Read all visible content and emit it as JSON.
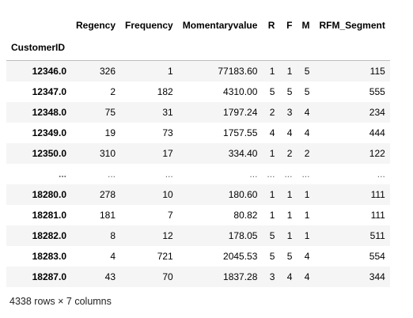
{
  "table": {
    "index_name": "CustomerID",
    "columns": [
      "Regency",
      "Frequency",
      "Momentaryvalue",
      "R",
      "F",
      "M",
      "RFM_Segment"
    ],
    "rows": [
      {
        "index": "12346.0",
        "cells": [
          "326",
          "1",
          "77183.60",
          "1",
          "1",
          "5",
          "115"
        ]
      },
      {
        "index": "12347.0",
        "cells": [
          "2",
          "182",
          "4310.00",
          "5",
          "5",
          "5",
          "555"
        ]
      },
      {
        "index": "12348.0",
        "cells": [
          "75",
          "31",
          "1797.24",
          "2",
          "3",
          "4",
          "234"
        ]
      },
      {
        "index": "12349.0",
        "cells": [
          "19",
          "73",
          "1757.55",
          "4",
          "4",
          "4",
          "444"
        ]
      },
      {
        "index": "12350.0",
        "cells": [
          "310",
          "17",
          "334.40",
          "1",
          "2",
          "2",
          "122"
        ]
      },
      {
        "index": "...",
        "cells": [
          "...",
          "...",
          "...",
          "...",
          "...",
          "...",
          "..."
        ]
      },
      {
        "index": "18280.0",
        "cells": [
          "278",
          "10",
          "180.60",
          "1",
          "1",
          "1",
          "111"
        ]
      },
      {
        "index": "18281.0",
        "cells": [
          "181",
          "7",
          "80.82",
          "1",
          "1",
          "1",
          "111"
        ]
      },
      {
        "index": "18282.0",
        "cells": [
          "8",
          "12",
          "178.05",
          "5",
          "1",
          "1",
          "511"
        ]
      },
      {
        "index": "18283.0",
        "cells": [
          "4",
          "721",
          "2045.53",
          "5",
          "5",
          "4",
          "554"
        ]
      },
      {
        "index": "18287.0",
        "cells": [
          "43",
          "70",
          "1837.28",
          "3",
          "4",
          "4",
          "344"
        ]
      }
    ]
  },
  "footer": {
    "shape_text": "4338 rows × 7 columns"
  }
}
